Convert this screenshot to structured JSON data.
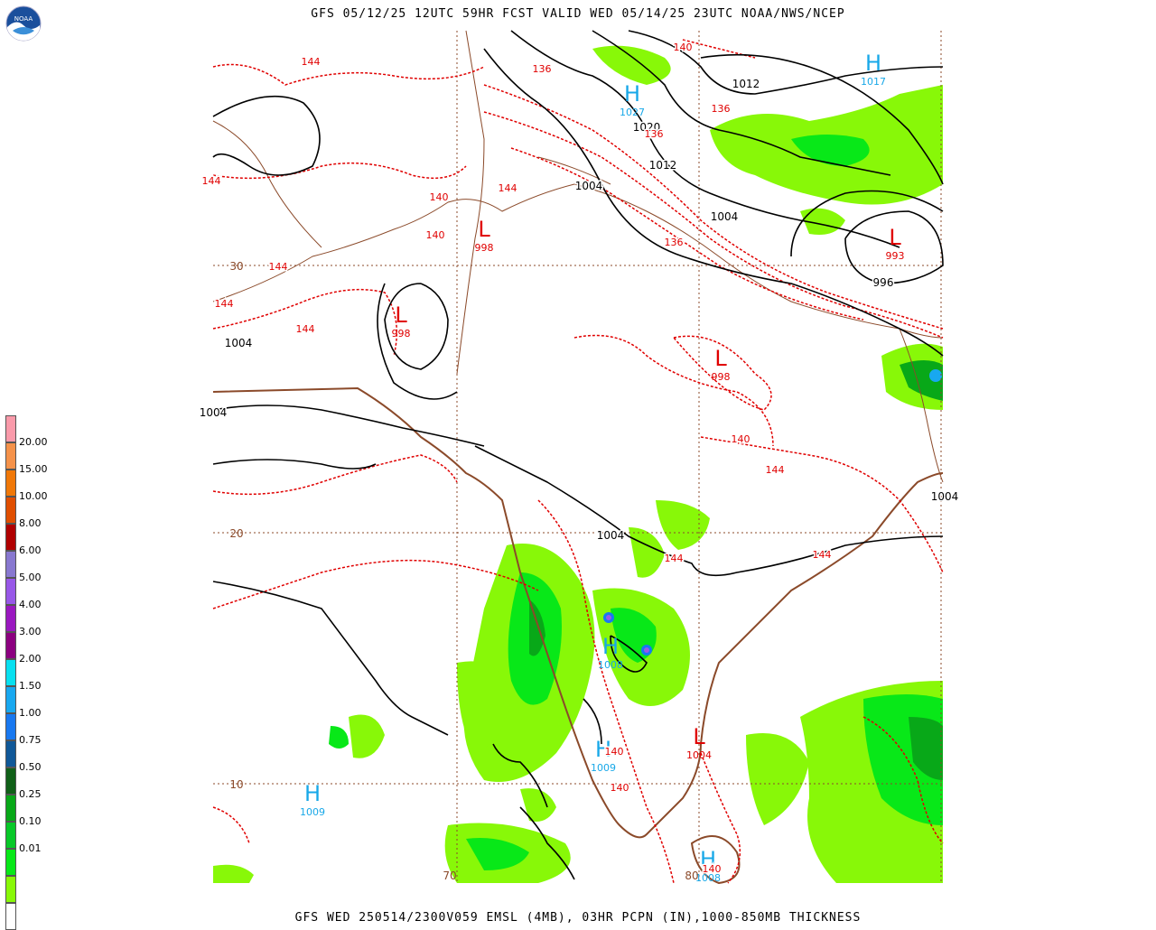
{
  "titles": {
    "top": "GFS 05/12/25 12UTC 59HR FCST VALID WED 05/14/25 23UTC NOAA/NWS/NCEP",
    "bottom": "GFS WED 250514/2300V059 EMSL (4MB), 03HR PCPN (IN),1000-850MB THICKNESS"
  },
  "logo": {
    "text": "NOAA"
  },
  "legend": {
    "colors": [
      "#fa9aaa",
      "#f5924a",
      "#f07808",
      "#e04e00",
      "#b00000",
      "#8878d0",
      "#9858e8",
      "#9a18c0",
      "#8c0080",
      "#08e0f0",
      "#18a8f0",
      "#1878f0",
      "#105898",
      "#106018",
      "#08a818",
      "#08c828",
      "#08e818",
      "#88f808",
      "#ffffff"
    ],
    "labels": [
      "20.00",
      "15.00",
      "10.00",
      "8.00",
      "6.00",
      "5.00",
      "4.00",
      "3.00",
      "2.00",
      "1.50",
      "1.00",
      "0.75",
      "0.50",
      "0.25",
      "0.10",
      "0.01"
    ]
  },
  "grid": {
    "lat_labels": [
      "30",
      "20",
      "10"
    ],
    "lon_labels": [
      "70",
      "80"
    ]
  },
  "pressure_centers": [
    {
      "type": "H",
      "value": "1017",
      "color": "#18a8e8"
    },
    {
      "type": "H",
      "value": "1027",
      "color": "#18a8e8"
    },
    {
      "type": "L",
      "value": "993",
      "color": "#e00000"
    },
    {
      "type": "L",
      "value": "998",
      "color": "#e00000"
    },
    {
      "type": "L",
      "value": "998",
      "color": "#e00000"
    },
    {
      "type": "L",
      "value": "998",
      "color": "#e00000"
    },
    {
      "type": "H",
      "value": "1008",
      "color": "#18a8e8"
    },
    {
      "type": "H",
      "value": "1009",
      "color": "#18a8e8"
    },
    {
      "type": "L",
      "value": "1004",
      "color": "#e00000"
    },
    {
      "type": "H",
      "value": "1009",
      "color": "#18a8e8"
    },
    {
      "type": "H",
      "value": "1008",
      "color": "#18a8e8"
    }
  ],
  "isobar_labels": [
    "1012",
    "1020",
    "1012",
    "1004",
    "1004",
    "996",
    "1004",
    "1004",
    "1004",
    "1004"
  ],
  "thickness_labels": [
    "144",
    "140",
    "136",
    "136",
    "136",
    "144",
    "140",
    "140",
    "144",
    "144",
    "140",
    "144",
    "144",
    "144",
    "144",
    "144",
    "136",
    "140",
    "140",
    "140"
  ],
  "colors": {
    "isobar": "#000000",
    "thickness": "#e00000",
    "border": "#8b4a2a",
    "precip_light": "#88f808",
    "precip_mid": "#08e818",
    "precip_heavy": "#08a818",
    "high": "#18a8e8",
    "low": "#e00000"
  }
}
